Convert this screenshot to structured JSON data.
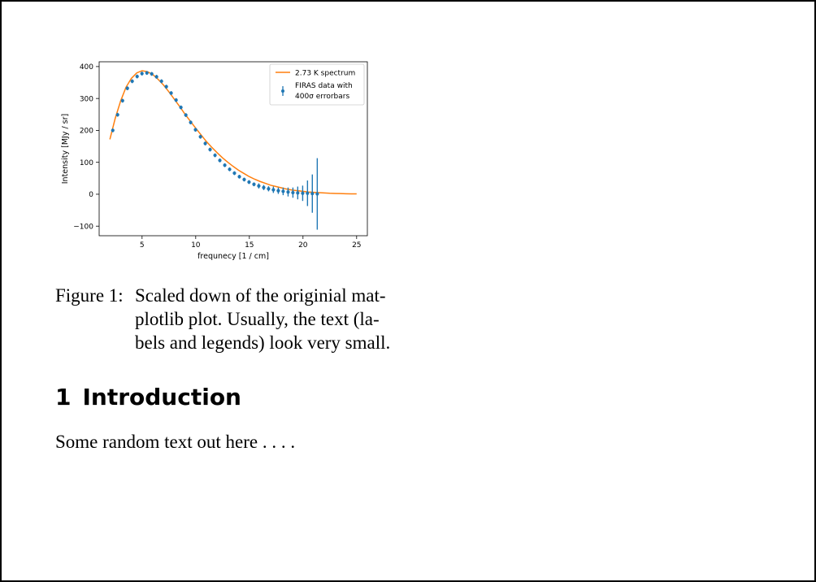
{
  "figure": {
    "chart_data": {
      "type": "line",
      "xlabel": "frequnecy [1 / cm]",
      "ylabel": "Intensity [MJy / sr]",
      "xlim": [
        1,
        26
      ],
      "ylim": [
        -130,
        415
      ],
      "xticks": [
        5,
        10,
        15,
        20,
        25
      ],
      "yticks": [
        -100,
        0,
        100,
        200,
        300,
        400
      ],
      "legend_position": "top-right",
      "grid": false,
      "series": [
        {
          "name": "2.73 K spectrum",
          "kind": "line",
          "color": "#ff7f0e",
          "x": [
            2.0,
            2.5,
            3.0,
            3.5,
            4.0,
            4.5,
            5.0,
            5.5,
            6.0,
            6.5,
            7.0,
            7.5,
            8.0,
            8.5,
            9.0,
            9.5,
            10.0,
            10.5,
            11.0,
            11.5,
            12.0,
            12.5,
            13.0,
            13.5,
            14.0,
            14.5,
            15.0,
            15.5,
            16.0,
            16.5,
            17.0,
            17.5,
            18.0,
            18.5,
            19.0,
            19.5,
            20.0,
            20.5,
            21.0,
            21.5,
            22.0,
            22.5,
            23.0,
            23.5,
            24.0,
            24.5,
            25.0
          ],
          "y": [
            172,
            238,
            292,
            335,
            363,
            380,
            387,
            384,
            375,
            360,
            342,
            321,
            298,
            275,
            251,
            229,
            207,
            186,
            165,
            147,
            130,
            114,
            100,
            87,
            75,
            65,
            55,
            47,
            40,
            34,
            28,
            24,
            20,
            16,
            13,
            11,
            9,
            7,
            6,
            5,
            4,
            3,
            2.5,
            2,
            1.5,
            1.2,
            1
          ]
        },
        {
          "name": "FIRAS data with\n400σ errorbars",
          "legend_lines": [
            "FIRAS data with",
            "400σ errorbars"
          ],
          "kind": "errorbar",
          "color": "#1f77b4",
          "x": [
            2.27,
            2.72,
            3.18,
            3.63,
            4.08,
            4.54,
            4.99,
            5.45,
            5.9,
            6.35,
            6.81,
            7.26,
            7.71,
            8.17,
            8.62,
            9.08,
            9.53,
            9.98,
            10.44,
            10.89,
            11.34,
            11.8,
            12.25,
            12.71,
            13.16,
            13.61,
            14.07,
            14.52,
            14.97,
            15.43,
            15.88,
            16.34,
            16.79,
            17.24,
            17.7,
            18.15,
            18.61,
            19.06,
            19.51,
            19.97,
            20.42,
            20.87,
            21.33
          ],
          "y": [
            200,
            249,
            293,
            332,
            354,
            369,
            378,
            380,
            377,
            368,
            354,
            337,
            317,
            295,
            272,
            248,
            225,
            202,
            180,
            159,
            140,
            122,
            106,
            91,
            78,
            66,
            55,
            46,
            38,
            31,
            26,
            21,
            17,
            14,
            11,
            9,
            7,
            5,
            4,
            3,
            3,
            2,
            1
          ],
          "yerr": [
            6,
            6,
            6,
            6,
            6,
            6,
            6,
            6,
            6,
            6,
            6,
            6,
            6,
            6,
            6,
            6,
            6,
            6,
            6,
            6,
            6,
            6,
            6,
            6,
            6,
            6,
            6,
            6,
            6,
            6,
            8,
            8,
            8,
            10,
            10,
            12,
            14,
            16,
            20,
            24,
            40,
            60,
            112
          ]
        }
      ]
    }
  },
  "caption": {
    "label": "Figure 1:",
    "lines": [
      "Scaled down of the originial mat-",
      "plotlib plot.  Usually, the text (la-",
      "bels and legends) look very small."
    ]
  },
  "section": {
    "number": "1",
    "title": "Introduction"
  },
  "body": {
    "text": "Some random text out here . . . ."
  }
}
